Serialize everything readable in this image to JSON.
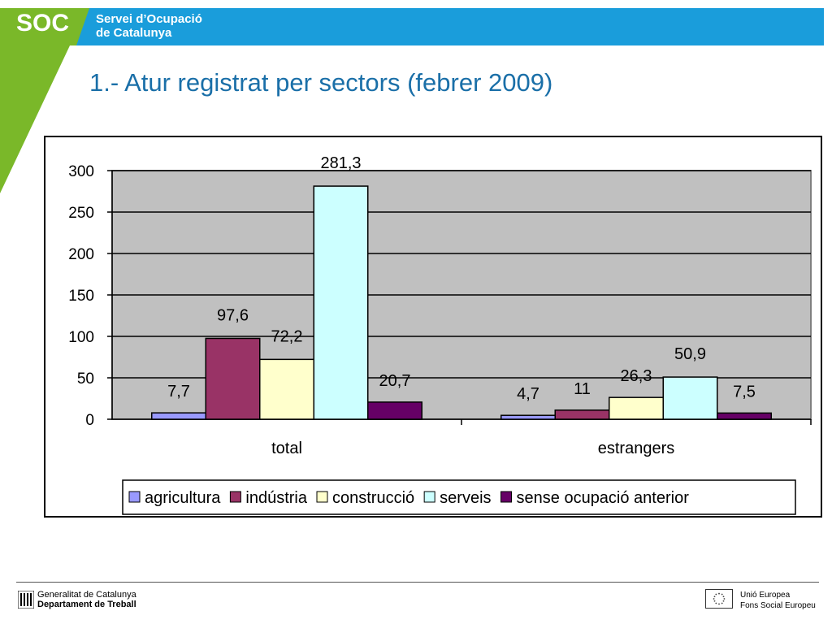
{
  "header": {
    "logo": "SOC",
    "org_line1": "Servei d’Ocupació",
    "org_line2": "de Catalunya",
    "colors": {
      "band": "#1a9ddb",
      "green": "#7ab829"
    }
  },
  "title": "1.- Atur registrat per sectors (febrer 2009)",
  "chart_data": {
    "type": "bar",
    "categories": [
      "total",
      "estrangers"
    ],
    "series": [
      {
        "name": "agricultura",
        "values": [
          7.7,
          4.7
        ],
        "labels": [
          "7,7",
          "4,7"
        ],
        "color": "#9999ff"
      },
      {
        "name": "indústria",
        "values": [
          97.6,
          11
        ],
        "labels": [
          "97,6",
          "11"
        ],
        "color": "#993366"
      },
      {
        "name": "construcció",
        "values": [
          72.2,
          26.3
        ],
        "labels": [
          "72,2",
          "26,3"
        ],
        "color": "#ffffcc"
      },
      {
        "name": "serveis",
        "values": [
          281.3,
          50.9
        ],
        "labels": [
          "281,3",
          "50,9"
        ],
        "color": "#ccffff"
      },
      {
        "name": "sense ocupació anterior",
        "values": [
          20.7,
          7.5
        ],
        "labels": [
          "20,7",
          "7,5"
        ],
        "color": "#660066"
      }
    ],
    "yticks": [
      0,
      50,
      100,
      150,
      200,
      250,
      300
    ],
    "ylim": [
      0,
      300
    ],
    "grid": true,
    "plot_background": "#c0c0c0",
    "legend_position": "bottom",
    "title": "",
    "xlabel": "",
    "ylabel": ""
  },
  "footer": {
    "gencat_line1": "Generalitat de Catalunya",
    "gencat_line2": "Departament de Treball",
    "eu_line1": "Unió Europea",
    "eu_line2": "Fons Social Europeu"
  }
}
